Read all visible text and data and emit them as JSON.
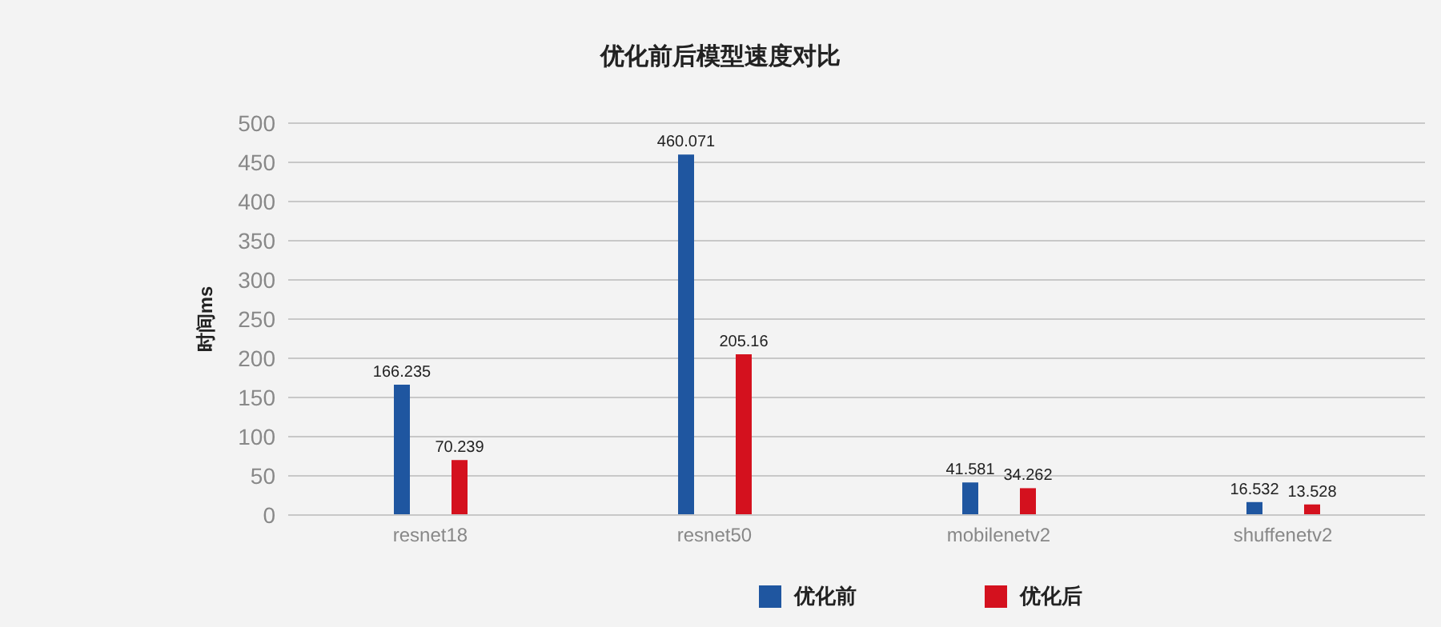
{
  "chart_data": {
    "type": "bar",
    "title": "优化前后模型速度对比",
    "ylabel": "时间ms",
    "categories": [
      "resnet18",
      "resnet50",
      "mobilenetv2",
      "shuffenetv2"
    ],
    "series": [
      {
        "name": "优化前",
        "color": "#1f56a0",
        "values": [
          166.235,
          460.071,
          41.581,
          16.532
        ]
      },
      {
        "name": "优化后",
        "color": "#d4111e",
        "values": [
          70.239,
          205.16,
          34.262,
          13.528
        ]
      }
    ],
    "ylim": [
      0,
      500
    ],
    "yticks": [
      0,
      50,
      100,
      150,
      200,
      250,
      300,
      350,
      400,
      450,
      500
    ],
    "grid": "y",
    "legend": "bottom",
    "data_labels": true
  }
}
